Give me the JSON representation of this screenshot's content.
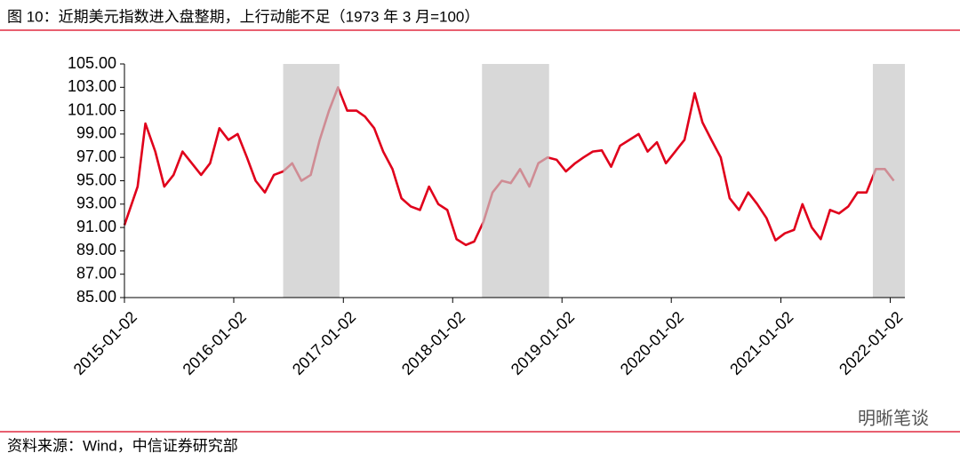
{
  "chart_data": {
    "type": "line",
    "title": "图 10：近期美元指数进入盘整期，上行动能不足（1973 年 3 月=100）",
    "source": "资料来源：Wind，中信证券研究部",
    "watermark": "明晰笔谈",
    "x": [
      "2015-01-02",
      "2015-02-15",
      "2015-03-13",
      "2015-04-15",
      "2015-05-15",
      "2015-06-15",
      "2015-07-15",
      "2015-08-15",
      "2015-09-15",
      "2015-10-15",
      "2015-11-15",
      "2015-12-15",
      "2016-01-15",
      "2016-02-15",
      "2016-03-15",
      "2016-04-15",
      "2016-05-15",
      "2016-06-15",
      "2016-07-15",
      "2016-08-15",
      "2016-09-15",
      "2016-10-15",
      "2016-11-15",
      "2016-12-15",
      "2017-01-15",
      "2017-02-15",
      "2017-03-15",
      "2017-04-15",
      "2017-05-15",
      "2017-06-15",
      "2017-07-15",
      "2017-08-15",
      "2017-09-15",
      "2017-10-15",
      "2017-11-15",
      "2017-12-15",
      "2018-01-15",
      "2018-02-15",
      "2018-03-15",
      "2018-04-15",
      "2018-05-15",
      "2018-06-15",
      "2018-07-15",
      "2018-08-15",
      "2018-09-15",
      "2018-10-15",
      "2018-11-15",
      "2018-12-15",
      "2019-01-15",
      "2019-02-15",
      "2019-03-15",
      "2019-04-15",
      "2019-05-15",
      "2019-06-15",
      "2019-07-15",
      "2019-08-15",
      "2019-09-15",
      "2019-10-15",
      "2019-11-15",
      "2019-12-15",
      "2020-01-15",
      "2020-02-15",
      "2020-03-20",
      "2020-04-15",
      "2020-05-15",
      "2020-06-15",
      "2020-07-15",
      "2020-08-15",
      "2020-09-15",
      "2020-10-15",
      "2020-11-15",
      "2020-12-15",
      "2021-01-15",
      "2021-02-15",
      "2021-03-15",
      "2021-04-15",
      "2021-05-15",
      "2021-06-15",
      "2021-07-15",
      "2021-08-15",
      "2021-09-15",
      "2021-10-15",
      "2021-11-15",
      "2021-12-15",
      "2022-01-14"
    ],
    "series": [
      {
        "color": "#e0001b",
        "values": [
          91.2,
          94.5,
          99.9,
          97.5,
          94.5,
          95.5,
          97.5,
          96.5,
          95.5,
          96.5,
          99.5,
          98.5,
          99,
          97,
          95,
          94,
          95.5,
          95.8,
          96.5,
          95,
          95.5,
          98.5,
          101,
          103,
          101,
          101,
          100.5,
          99.5,
          97.5,
          96,
          93.5,
          92.8,
          92.5,
          94.5,
          93,
          92.5,
          90,
          89.5,
          89.8,
          91.5,
          94,
          95,
          94.8,
          96,
          94.5,
          96.5,
          97,
          96.8,
          95.8,
          96.5,
          97,
          97.5,
          97.6,
          96.2,
          98,
          98.5,
          99,
          97.5,
          98.3,
          96.5,
          97.5,
          98.5,
          102.5,
          100,
          98.5,
          97,
          93.5,
          92.5,
          94,
          93,
          91.8,
          89.9,
          90.5,
          90.8,
          93,
          91,
          90,
          92.5,
          92.2,
          92.8,
          94,
          94,
          96,
          96,
          95
        ]
      }
    ],
    "shaded_ranges": [
      [
        "2016-06-15",
        "2016-12-20"
      ],
      [
        "2018-04-10",
        "2018-11-20"
      ],
      [
        "2021-11-05",
        "2022-02-20"
      ]
    ],
    "shade_color": "#c8c8c8",
    "xlim": [
      "2015-01-02",
      "2022-02-20"
    ],
    "xticks": [
      "2015-01-02",
      "2016-01-02",
      "2017-01-02",
      "2018-01-02",
      "2019-01-02",
      "2020-01-02",
      "2021-01-02",
      "2022-01-02"
    ],
    "ylim": [
      85,
      105
    ],
    "yticks": [
      {
        "value": 85,
        "label": "85.00"
      },
      {
        "value": 87,
        "label": "87.00"
      },
      {
        "value": 89,
        "label": "89.00"
      },
      {
        "value": 91,
        "label": "91.00"
      },
      {
        "value": 93,
        "label": "93.00"
      },
      {
        "value": 95,
        "label": "95.00"
      },
      {
        "value": 97,
        "label": "97.00"
      },
      {
        "value": 99,
        "label": "99.00"
      },
      {
        "value": 101,
        "label": "101.00"
      },
      {
        "value": 103,
        "label": "103.00"
      },
      {
        "value": 105,
        "label": "105.00"
      }
    ],
    "grid": false
  }
}
